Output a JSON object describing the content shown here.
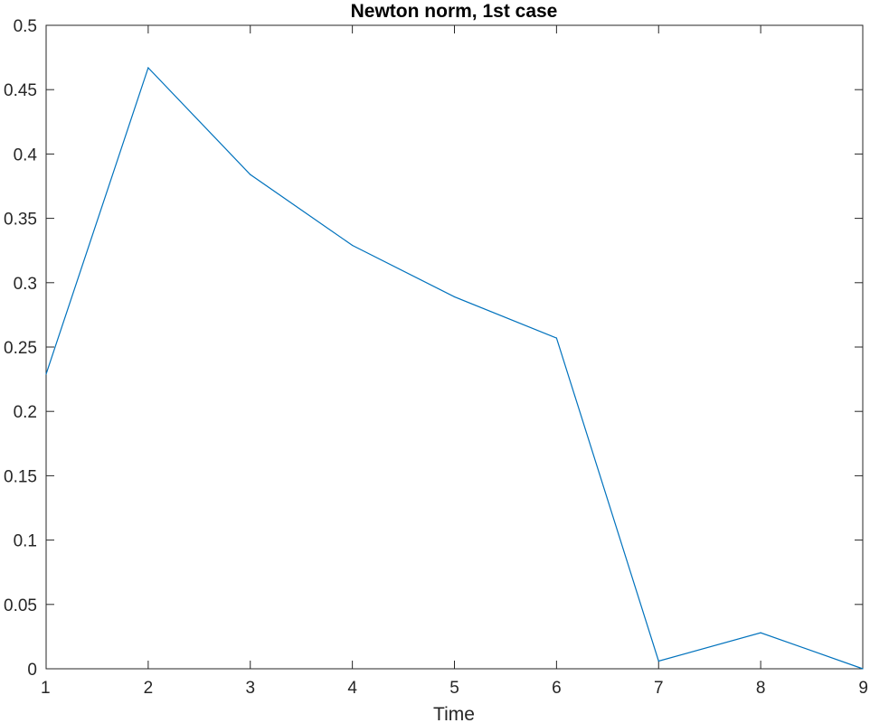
{
  "chart_data": {
    "type": "line",
    "title": "Newton norm, 1st case",
    "xlabel": "Time",
    "ylabel": "",
    "xlim": [
      1,
      9
    ],
    "ylim": [
      0,
      0.5
    ],
    "x_ticks": [
      1,
      2,
      3,
      4,
      5,
      6,
      7,
      8,
      9
    ],
    "x_tick_labels": [
      "1",
      "2",
      "3",
      "4",
      "5",
      "6",
      "7",
      "8",
      "9"
    ],
    "y_ticks": [
      0,
      0.05,
      0.1,
      0.15,
      0.2,
      0.25,
      0.3,
      0.35,
      0.4,
      0.45,
      0.5
    ],
    "y_tick_labels": [
      "0",
      "0.05",
      "0.1",
      "0.15",
      "0.2",
      "0.25",
      "0.3",
      "0.35",
      "0.4",
      "0.45",
      "0.5"
    ],
    "grid": false,
    "box": true,
    "x": [
      1,
      2,
      3,
      4,
      5,
      6,
      7,
      8,
      9
    ],
    "series": [
      {
        "color": "#0072BD",
        "values": [
          0.229,
          0.467,
          0.384,
          0.329,
          0.289,
          0.257,
          0.006,
          0.028,
          0.0
        ]
      }
    ]
  }
}
